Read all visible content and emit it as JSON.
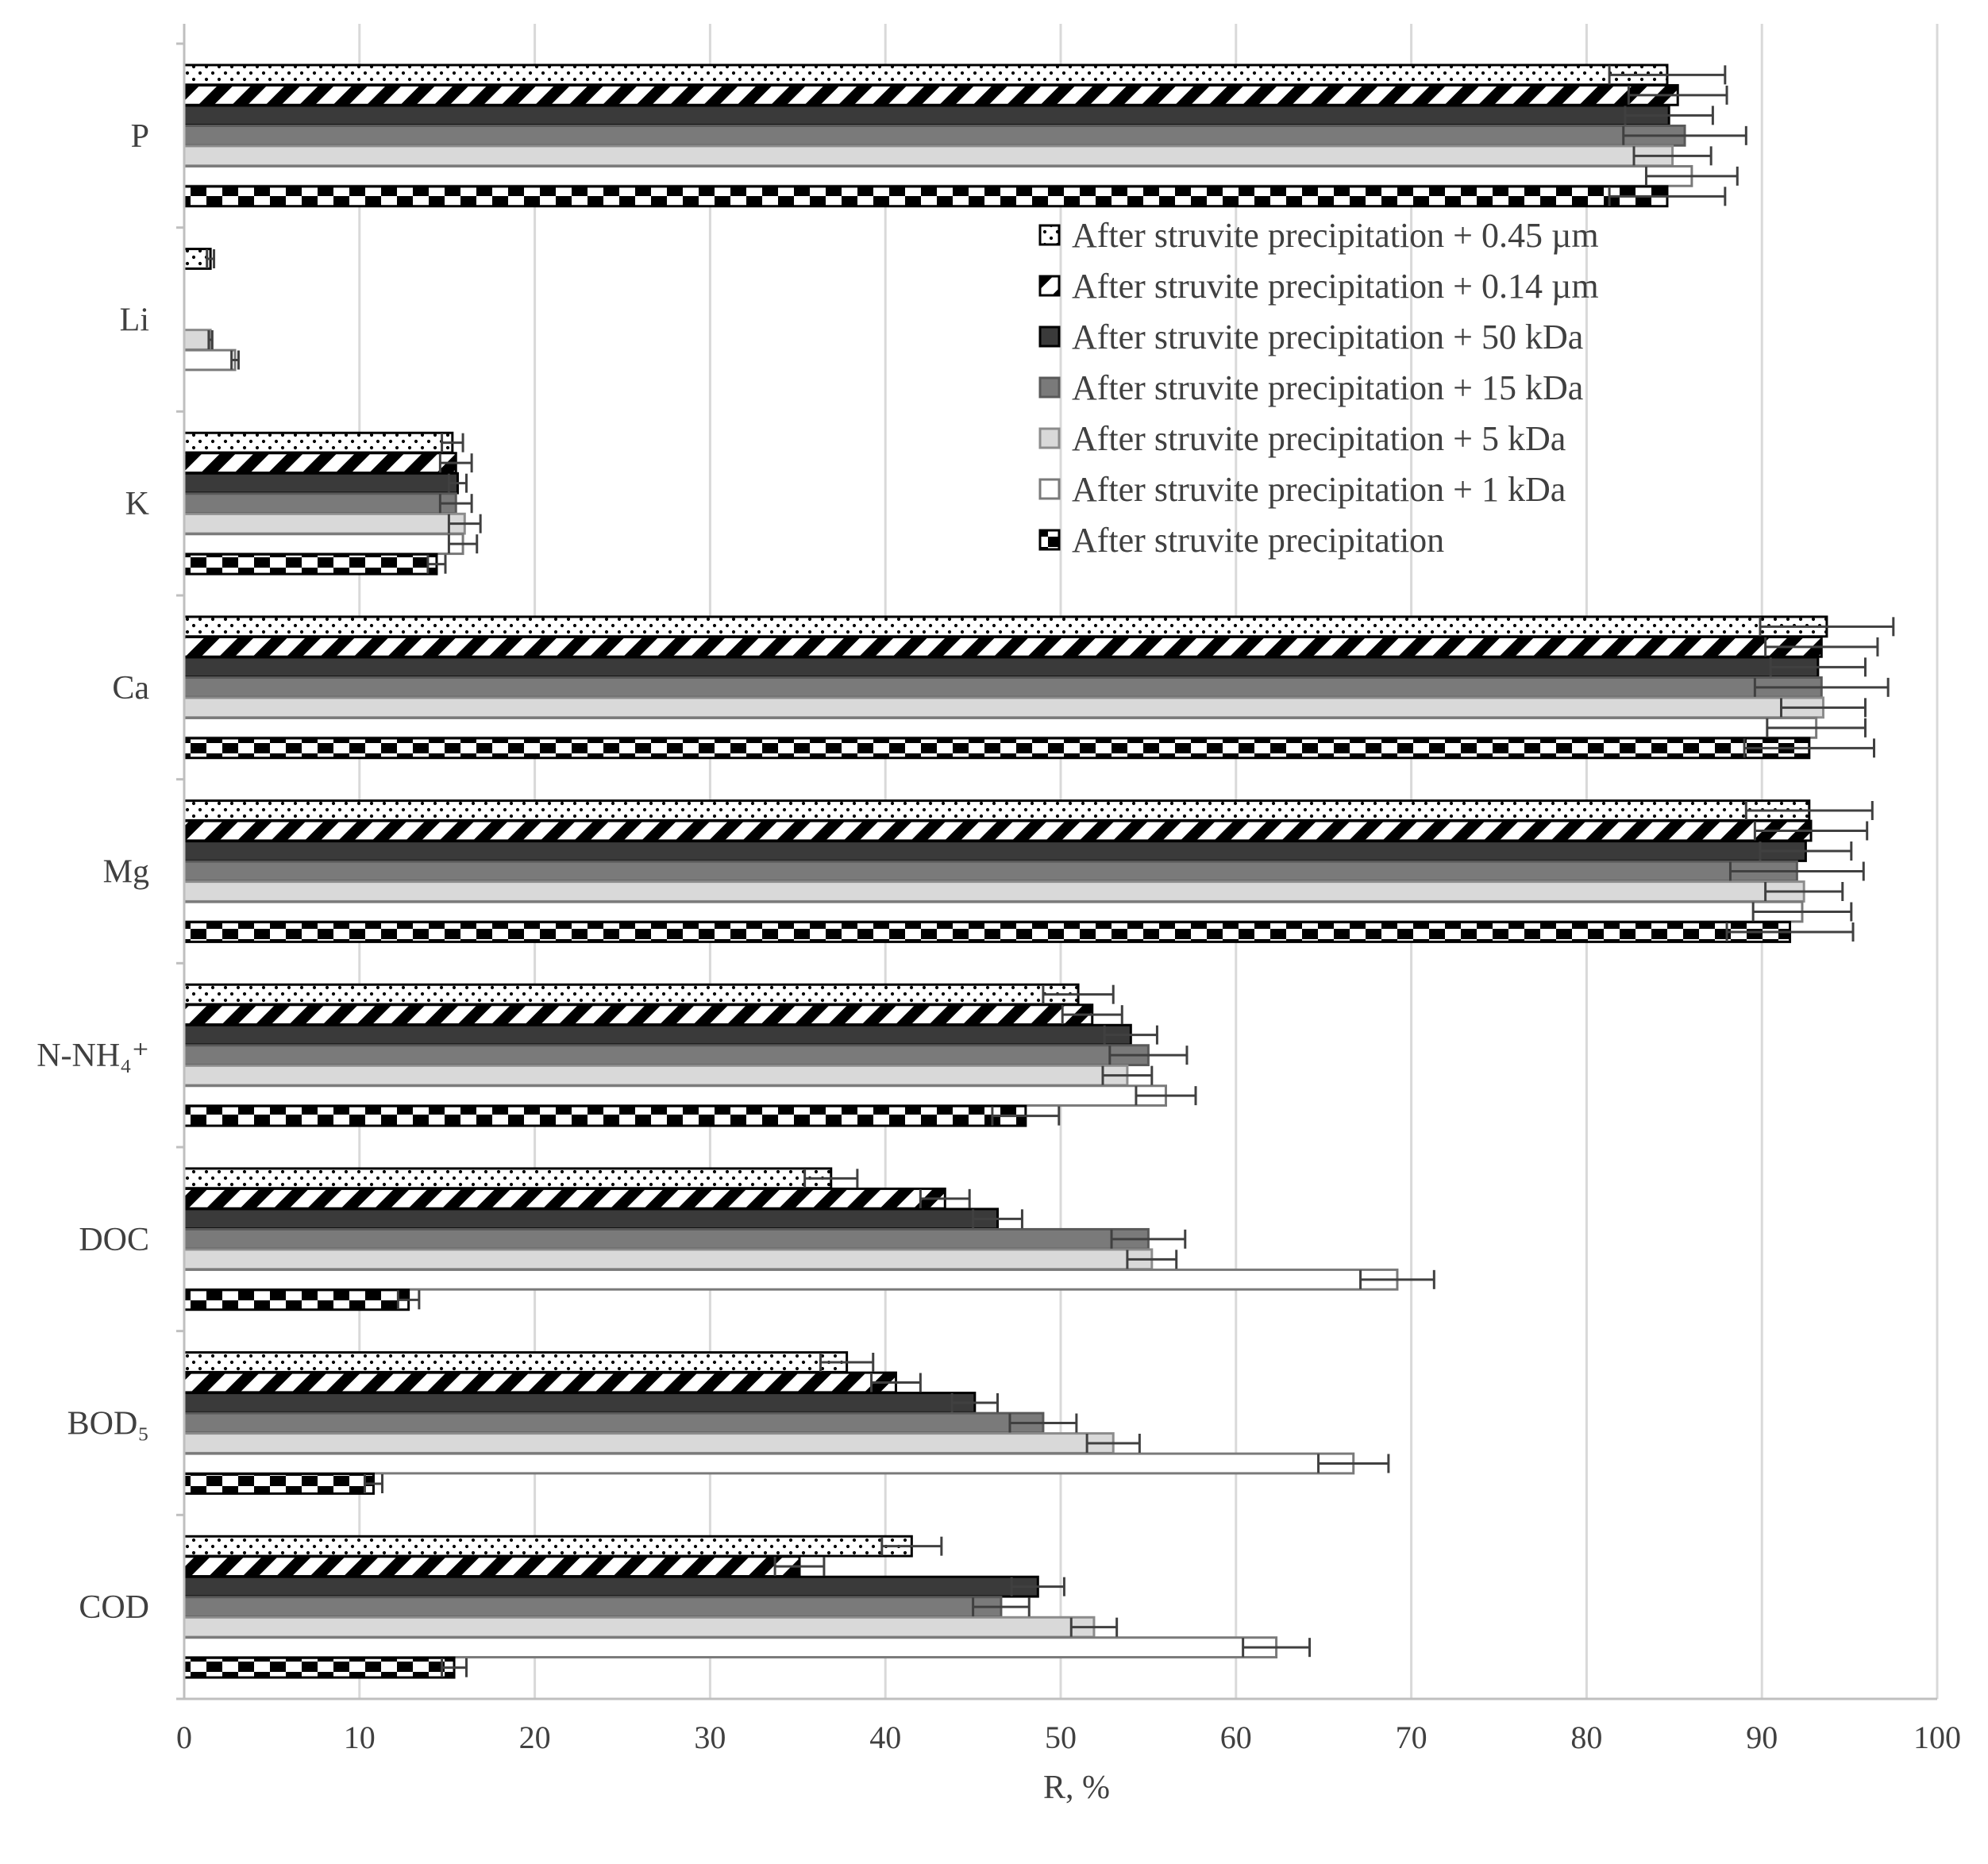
{
  "chart_data": {
    "type": "bar",
    "orientation": "horizontal",
    "title": "",
    "xlabel": "R, %",
    "ylabel": "",
    "xlim": [
      0,
      100
    ],
    "x_ticks": [
      0,
      10,
      20,
      30,
      40,
      50,
      60,
      70,
      80,
      90,
      100
    ],
    "grid": "vertical",
    "legend_position": "top-right",
    "categories": [
      "P",
      "Li",
      "K",
      "Ca",
      "Mg",
      "N-NH₄⁺",
      "DOC",
      "BOD₅",
      "COD"
    ],
    "series": [
      {
        "name": "After struvite precipitation + 0.45 µm",
        "pattern": "dots",
        "values": [
          84.6,
          1.5,
          15.3,
          93.7,
          92.7,
          51.0,
          36.9,
          37.8,
          41.5
        ],
        "errors": [
          3.3,
          0.2,
          0.6,
          3.8,
          3.6,
          2.0,
          1.5,
          1.5,
          1.7
        ]
      },
      {
        "name": "After struvite precipitation + 0.14 µm",
        "pattern": "diagonal",
        "values": [
          85.2,
          0,
          15.5,
          93.4,
          92.8,
          51.8,
          43.4,
          40.6,
          35.1
        ],
        "errors": [
          2.8,
          0,
          0.9,
          3.2,
          3.2,
          1.7,
          1.4,
          1.4,
          1.4
        ]
      },
      {
        "name": "After struvite precipitation + 50 kDa",
        "pattern": "dark",
        "values": [
          84.7,
          0,
          15.6,
          93.2,
          92.5,
          54.0,
          46.4,
          45.1,
          48.7
        ],
        "errors": [
          2.5,
          0,
          0.5,
          2.7,
          2.6,
          1.5,
          1.4,
          1.3,
          1.5
        ]
      },
      {
        "name": "After struvite precipitation + 15 kDa",
        "pattern": "medium-gray",
        "values": [
          85.6,
          0,
          15.5,
          93.4,
          92.0,
          55.0,
          55.0,
          49.0,
          46.6
        ],
        "errors": [
          3.5,
          0,
          0.9,
          3.8,
          3.8,
          2.2,
          2.1,
          1.9,
          1.6
        ]
      },
      {
        "name": "After struvite precipitation + 5 kDa",
        "pattern": "light-gray",
        "values": [
          84.9,
          1.5,
          16.0,
          93.5,
          92.4,
          53.8,
          55.2,
          53.0,
          51.9
        ],
        "errors": [
          2.2,
          0.1,
          0.9,
          2.4,
          2.2,
          1.4,
          1.4,
          1.5,
          1.3
        ]
      },
      {
        "name": "After struvite precipitation + 1 kDa",
        "pattern": "white",
        "values": [
          86.0,
          2.9,
          15.9,
          93.1,
          92.3,
          56.0,
          69.2,
          66.7,
          62.3
        ],
        "errors": [
          2.6,
          0.2,
          0.8,
          2.8,
          2.8,
          1.7,
          2.1,
          2.0,
          1.9
        ]
      },
      {
        "name": "After struvite precipitation",
        "pattern": "checker",
        "values": [
          84.6,
          0,
          14.4,
          92.7,
          91.6,
          48.0,
          12.8,
          10.8,
          15.4
        ],
        "errors": [
          3.3,
          0,
          0.5,
          3.7,
          3.6,
          1.9,
          0.6,
          0.5,
          0.7
        ]
      }
    ]
  }
}
